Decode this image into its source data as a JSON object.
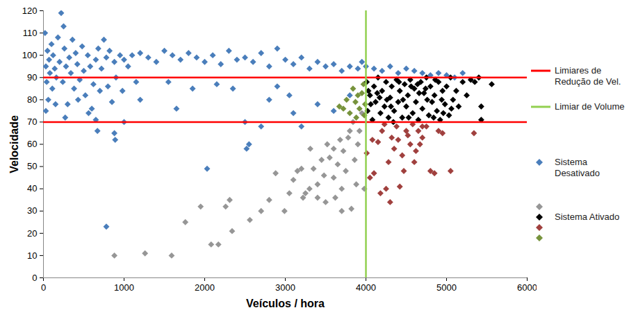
{
  "chart_data": {
    "type": "scatter",
    "x_label": "Veículos / hora",
    "y_label": "Velocidade",
    "xlim": [
      0,
      6000
    ],
    "xticks": [
      0,
      1000,
      2000,
      3000,
      4000,
      5000,
      6000
    ],
    "ylim": [
      0,
      120
    ],
    "yticks": [
      0,
      10,
      20,
      30,
      40,
      50,
      60,
      70,
      80,
      90,
      100,
      110,
      120
    ],
    "grid": false,
    "legend": "right",
    "marker": "diamond",
    "reference_lines": [
      {
        "label": "Limiares de Redução de Vel.",
        "axis": "y",
        "values": [
          70,
          90
        ],
        "color": "#ff0000"
      },
      {
        "label": "Limiar de Volume",
        "axis": "x",
        "values": [
          4000
        ],
        "color": "#92d050"
      }
    ],
    "series": [
      {
        "name": "Sistema Desativado",
        "color": "#4a7ebb",
        "x": [
          20,
          30,
          40,
          50,
          60,
          70,
          80,
          100,
          110,
          120,
          140,
          160,
          180,
          200,
          220,
          240,
          250,
          260,
          280,
          300,
          320,
          340,
          360,
          380,
          400,
          420,
          450,
          480,
          500,
          520,
          550,
          580,
          600,
          620,
          650,
          680,
          700,
          720,
          750,
          780,
          800,
          820,
          850,
          880,
          900,
          950,
          980,
          1000,
          30,
          150,
          270,
          430,
          560,
          650,
          670,
          880,
          890,
          780,
          2030,
          2520,
          2550,
          1050,
          1100,
          1150,
          1200,
          1300,
          1400,
          1500,
          1550,
          1600,
          1700,
          1800,
          1850,
          1900,
          2000,
          2100,
          2200,
          2300,
          2350,
          2400,
          2500,
          2600,
          2700,
          2800,
          2900,
          3000,
          3050,
          3100,
          3200,
          3300,
          3400,
          3500,
          3600,
          3700,
          3800,
          3900,
          3950,
          4000,
          4100,
          4200,
          4300,
          4400,
          4500,
          4600,
          4700,
          4800,
          4900,
          5000,
          5100,
          5200,
          1200,
          1650,
          2150,
          2500,
          2700,
          2900,
          3200,
          3400,
          3600,
          3800,
          1000,
          3100,
          2800
        ],
        "values": [
          110,
          95,
          88,
          102,
          80,
          98,
          92,
          105,
          85,
          100,
          94,
          90,
          108,
          97,
          119,
          88,
          113,
          103,
          95,
          78,
          99,
          92,
          107,
          85,
          101,
          96,
          89,
          104,
          93,
          82,
          100,
          95,
          76,
          87,
          98,
          103,
          84,
          94,
          107,
          99,
          86,
          102,
          79,
          97,
          90,
          100,
          84,
          98,
          75,
          78,
          72,
          80,
          74,
          71,
          66,
          65,
          62,
          23,
          49,
          58,
          60,
          95,
          100,
          88,
          101,
          99,
          97,
          102,
          88,
          100,
          98,
          101,
          85,
          99,
          97,
          100,
          96,
          102,
          85,
          98,
          99,
          97,
          101,
          95,
          103,
          98,
          82,
          96,
          99,
          94,
          97,
          95,
          96,
          93,
          95,
          94,
          97,
          95,
          94,
          93,
          95,
          92,
          94,
          93,
          92,
          91,
          92,
          91,
          90,
          92,
          80,
          76,
          87,
          70,
          68,
          86,
          68,
          78,
          75,
          82,
          70,
          74,
          80
        ]
      },
      {
        "name": null,
        "color": "#969696",
        "x": [
          880,
          1260,
          1590,
          1760,
          1950,
          2080,
          2170,
          2260,
          2310,
          2340,
          2560,
          2700,
          2800,
          2880,
          2990,
          3050,
          3100,
          3150,
          3220,
          3250,
          3300,
          3310,
          3350,
          3400,
          3450,
          3480,
          3520,
          3550,
          3600,
          3620,
          3650,
          3680,
          3700,
          3720,
          3750,
          3780,
          3800,
          3820,
          3840,
          3860,
          3880,
          3900,
          3920,
          3950,
          3980,
          3700,
          3600,
          3500,
          3400,
          3200
        ],
        "values": [
          10,
          11,
          10,
          25,
          32,
          15,
          15,
          32,
          35,
          21,
          26,
          30,
          35,
          47,
          30,
          38,
          44,
          48,
          36,
          38,
          40,
          58,
          49,
          42,
          53,
          46,
          60,
          54,
          45,
          36,
          51,
          62,
          40,
          57,
          48,
          63,
          66,
          31,
          70,
          53,
          42,
          60,
          66,
          74,
          40,
          30,
          58,
          34,
          36,
          49
        ]
      },
      {
        "name": "Sistema Ativado",
        "color": "#000000",
        "x": [
          4010,
          4020,
          4050,
          4080,
          4100,
          4120,
          4150,
          4180,
          4200,
          4230,
          4250,
          4280,
          4300,
          4320,
          4350,
          4380,
          4400,
          4420,
          4450,
          4480,
          4500,
          4520,
          4550,
          4580,
          4600,
          4620,
          4650,
          4680,
          4700,
          4720,
          4750,
          4780,
          4800,
          4820,
          4850,
          4880,
          4900,
          4920,
          4950,
          4980,
          5000,
          5030,
          5050,
          5080,
          5120,
          5150,
          5200,
          5250,
          5300,
          5350,
          5400,
          5430,
          5430,
          5560,
          4060,
          4140,
          4260,
          4340,
          4460,
          4560,
          4660,
          4760,
          4860,
          4960,
          4030,
          4170,
          4310,
          4410,
          4530,
          4640,
          4740,
          4840,
          4940,
          5060
        ],
        "values": [
          88,
          75,
          82,
          71,
          86,
          79,
          90,
          74,
          84,
          77,
          88,
          72,
          81,
          86,
          75,
          89,
          79,
          84,
          72,
          87,
          77,
          82,
          89,
          74,
          85,
          79,
          71,
          88,
          76,
          83,
          90,
          73,
          86,
          79,
          82,
          75,
          88,
          71,
          84,
          78,
          86,
          73,
          90,
          80,
          84,
          77,
          88,
          82,
          89,
          88,
          90,
          77,
          71,
          87,
          78,
          83,
          80,
          70,
          80,
          86,
          83,
          80,
          89,
          74,
          84,
          81,
          77,
          88,
          72,
          87,
          85,
          72,
          80,
          76
        ]
      },
      {
        "name": null,
        "color": "#a0403e",
        "x": [
          4010,
          4050,
          4100,
          4150,
          4180,
          4200,
          4250,
          4280,
          4300,
          4320,
          4350,
          4380,
          4400,
          4450,
          4500,
          4520,
          4550,
          4600,
          4620,
          4650,
          4700,
          4750,
          4800,
          4850,
          4900,
          4950,
          5050,
          4230,
          4420,
          4700,
          4580,
          5340,
          4080,
          4470,
          4670
        ],
        "values": [
          56,
          45,
          47,
          61,
          38,
          66,
          40,
          52,
          34,
          63,
          58,
          68,
          62,
          55,
          66,
          64,
          60,
          52,
          57,
          66,
          63,
          68,
          48,
          47,
          66,
          65,
          48,
          69,
          41,
          68,
          69,
          65,
          62,
          48,
          60
        ]
      },
      {
        "name": null,
        "color": "#77933c",
        "x": [
          3670,
          3720,
          3760,
          3800,
          3840,
          3870,
          3900,
          3920,
          3950,
          3970,
          3980,
          3990,
          3880
        ],
        "values": [
          77,
          76,
          80,
          74,
          85,
          79,
          82,
          76,
          83,
          87,
          73,
          78,
          72
        ]
      }
    ]
  }
}
